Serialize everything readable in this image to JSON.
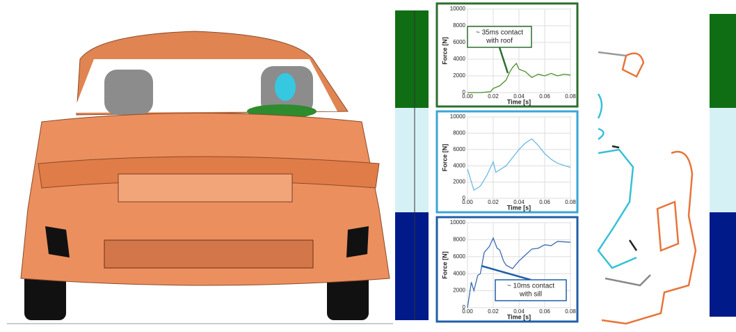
{
  "chart_data": [
    {
      "type": "line",
      "color": "#4c8c2b",
      "border": "#2c6e2e",
      "x": [
        0,
        0.01,
        0.018,
        0.02,
        0.025,
        0.03,
        0.033,
        0.035,
        0.038,
        0.04,
        0.045,
        0.05,
        0.055,
        0.06,
        0.065,
        0.07,
        0.075,
        0.08
      ],
      "values": [
        0,
        0,
        100,
        500,
        800,
        1500,
        2500,
        3000,
        3500,
        2800,
        2500,
        1800,
        2200,
        2000,
        2300,
        2000,
        2200,
        2100
      ],
      "xlabel": "Time [s]",
      "ylabel": "Force [N]",
      "xlim": [
        0,
        0.08
      ],
      "xticks": [
        {
          "value": 0,
          "label": "0.00"
        },
        0.02,
        0.04,
        0.06,
        0.08
      ],
      "ylim": [
        0,
        10000
      ],
      "yticks": [
        0,
        2000,
        4000,
        6000,
        8000,
        10000
      ],
      "grid": true,
      "annotation": [
        "~ 35ms contact",
        "with roof"
      ]
    },
    {
      "type": "line",
      "color": "#6bb8e6",
      "border": "#3aa6d8",
      "x": [
        0,
        0.005,
        0.01,
        0.015,
        0.02,
        0.022,
        0.03,
        0.035,
        0.04,
        0.045,
        0.05,
        0.055,
        0.06,
        0.065,
        0.07,
        0.08
      ],
      "values": [
        3600,
        1000,
        1500,
        2800,
        4500,
        3200,
        4000,
        5000,
        6000,
        6800,
        7300,
        6500,
        5500,
        4800,
        4300,
        3800
      ],
      "xlabel": "Time [s]",
      "ylabel": "Force [N]",
      "xlim": [
        0,
        0.08
      ],
      "xticks": [
        {
          "value": 0,
          "label": "0.00"
        },
        0.02,
        0.04,
        0.06,
        0.08
      ],
      "ylim": [
        0,
        10000
      ],
      "yticks": [
        0,
        2000,
        4000,
        6000,
        8000,
        10000
      ],
      "grid": true
    },
    {
      "type": "line",
      "color": "#3a6bb0",
      "border": "#1f5fa8",
      "x": [
        0,
        0.003,
        0.005,
        0.008,
        0.01,
        0.013,
        0.017,
        0.02,
        0.023,
        0.025,
        0.028,
        0.03,
        0.035,
        0.04,
        0.045,
        0.05,
        0.055,
        0.06,
        0.065,
        0.07,
        0.08
      ],
      "values": [
        0,
        3000,
        2000,
        3800,
        4000,
        6500,
        7200,
        8200,
        7000,
        6800,
        5500,
        5000,
        4600,
        5500,
        6200,
        6900,
        7000,
        7400,
        7300,
        7800,
        7700
      ],
      "xlabel": "Time [s]",
      "ylabel": "Force [N]",
      "xlim": [
        0,
        0.08
      ],
      "xticks": [
        {
          "value": 0,
          "label": "0.00"
        },
        0.02,
        0.04,
        0.06,
        0.08
      ],
      "ylim": [
        0,
        10000
      ],
      "yticks": [
        0,
        2000,
        4000,
        6000,
        8000,
        10000
      ],
      "grid": true,
      "annotation": [
        "~ 10ms contact",
        "with sill"
      ]
    }
  ]
}
